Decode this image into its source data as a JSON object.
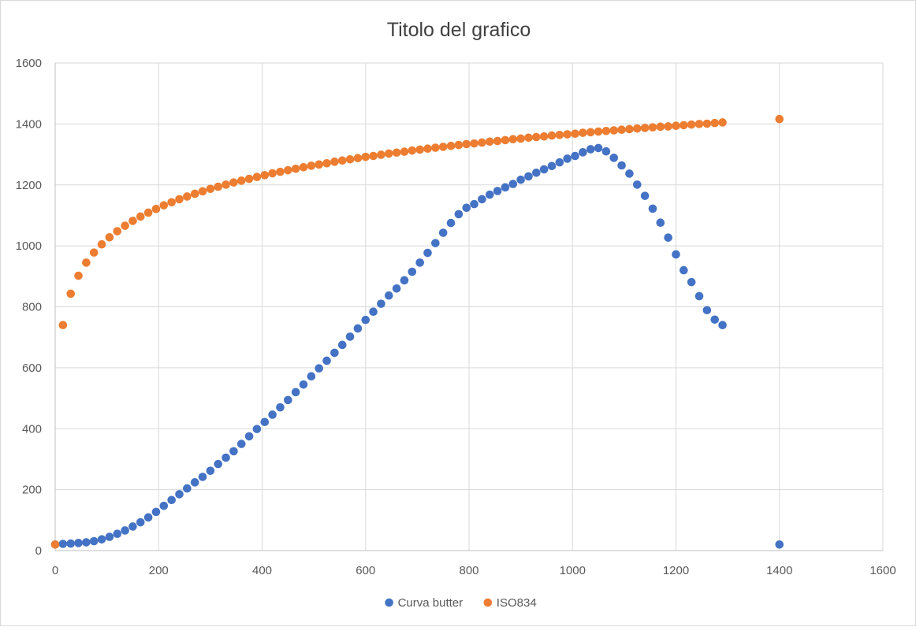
{
  "chart_data": {
    "type": "scatter",
    "title": "Titolo del grafico",
    "xlabel": "",
    "ylabel": "",
    "xlim": [
      0,
      1600
    ],
    "ylim": [
      0,
      1600
    ],
    "x_ticks": [
      "0",
      "200",
      "400",
      "600",
      "800",
      "1000",
      "1200",
      "1400",
      "1600"
    ],
    "y_ticks": [
      "0",
      "200",
      "400",
      "600",
      "800",
      "1000",
      "1200",
      "1400",
      "1600"
    ],
    "grid": true,
    "legend_position": "bottom",
    "series": [
      {
        "name": "Curva butter",
        "color": "#4472c4",
        "points": [
          [
            0,
            20
          ],
          [
            15,
            22
          ],
          [
            30,
            23
          ],
          [
            45,
            25
          ],
          [
            60,
            27
          ],
          [
            75,
            31
          ],
          [
            90,
            37
          ],
          [
            105,
            45
          ],
          [
            120,
            55
          ],
          [
            135,
            66
          ],
          [
            150,
            79
          ],
          [
            165,
            93
          ],
          [
            180,
            109
          ],
          [
            195,
            127
          ],
          [
            210,
            147
          ],
          [
            225,
            166
          ],
          [
            240,
            185
          ],
          [
            255,
            204
          ],
          [
            270,
            224
          ],
          [
            285,
            242
          ],
          [
            300,
            262
          ],
          [
            315,
            284
          ],
          [
            330,
            305
          ],
          [
            345,
            326
          ],
          [
            360,
            350
          ],
          [
            375,
            375
          ],
          [
            390,
            399
          ],
          [
            405,
            422
          ],
          [
            420,
            446
          ],
          [
            435,
            470
          ],
          [
            450,
            494
          ],
          [
            465,
            520
          ],
          [
            480,
            545
          ],
          [
            495,
            572
          ],
          [
            510,
            598
          ],
          [
            525,
            623
          ],
          [
            540,
            649
          ],
          [
            555,
            675
          ],
          [
            570,
            702
          ],
          [
            585,
            729
          ],
          [
            600,
            757
          ],
          [
            615,
            784
          ],
          [
            630,
            810
          ],
          [
            645,
            837
          ],
          [
            660,
            860
          ],
          [
            675,
            887
          ],
          [
            690,
            915
          ],
          [
            705,
            945
          ],
          [
            720,
            977
          ],
          [
            735,
            1009
          ],
          [
            750,
            1043
          ],
          [
            765,
            1075
          ],
          [
            780,
            1104
          ],
          [
            795,
            1125
          ],
          [
            810,
            1137
          ],
          [
            825,
            1153
          ],
          [
            840,
            1168
          ],
          [
            855,
            1180
          ],
          [
            870,
            1192
          ],
          [
            885,
            1203
          ],
          [
            900,
            1217
          ],
          [
            915,
            1228
          ],
          [
            930,
            1240
          ],
          [
            945,
            1251
          ],
          [
            960,
            1262
          ],
          [
            975,
            1274
          ],
          [
            990,
            1286
          ],
          [
            1005,
            1295
          ],
          [
            1020,
            1307
          ],
          [
            1035,
            1317
          ],
          [
            1050,
            1321
          ],
          [
            1065,
            1310
          ],
          [
            1080,
            1289
          ],
          [
            1095,
            1264
          ],
          [
            1110,
            1237
          ],
          [
            1125,
            1201
          ],
          [
            1140,
            1164
          ],
          [
            1155,
            1122
          ],
          [
            1170,
            1076
          ],
          [
            1185,
            1027
          ],
          [
            1200,
            972
          ],
          [
            1215,
            920
          ],
          [
            1230,
            881
          ],
          [
            1245,
            835
          ],
          [
            1260,
            789
          ],
          [
            1275,
            758
          ],
          [
            1290,
            740
          ],
          [
            1400,
            20
          ]
        ]
      },
      {
        "name": "ISO834",
        "color": "#ed7d31",
        "points": [
          [
            0,
            20
          ],
          [
            15,
            740
          ],
          [
            30,
            843
          ],
          [
            45,
            902
          ],
          [
            60,
            945
          ],
          [
            75,
            978
          ],
          [
            90,
            1005
          ],
          [
            105,
            1028
          ],
          [
            120,
            1048
          ],
          [
            135,
            1066
          ],
          [
            150,
            1082
          ],
          [
            165,
            1096
          ],
          [
            180,
            1109
          ],
          [
            195,
            1121
          ],
          [
            210,
            1133
          ],
          [
            225,
            1143
          ],
          [
            240,
            1153
          ],
          [
            255,
            1162
          ],
          [
            270,
            1171
          ],
          [
            285,
            1179
          ],
          [
            300,
            1187
          ],
          [
            315,
            1194
          ],
          [
            330,
            1201
          ],
          [
            345,
            1208
          ],
          [
            360,
            1214
          ],
          [
            375,
            1220
          ],
          [
            390,
            1226
          ],
          [
            405,
            1232
          ],
          [
            420,
            1238
          ],
          [
            435,
            1243
          ],
          [
            450,
            1248
          ],
          [
            465,
            1253
          ],
          [
            480,
            1258
          ],
          [
            495,
            1263
          ],
          [
            510,
            1267
          ],
          [
            525,
            1271
          ],
          [
            540,
            1276
          ],
          [
            555,
            1280
          ],
          [
            570,
            1284
          ],
          [
            585,
            1288
          ],
          [
            600,
            1292
          ],
          [
            615,
            1295
          ],
          [
            630,
            1299
          ],
          [
            645,
            1303
          ],
          [
            660,
            1306
          ],
          [
            675,
            1309
          ],
          [
            690,
            1313
          ],
          [
            705,
            1316
          ],
          [
            720,
            1319
          ],
          [
            735,
            1322
          ],
          [
            750,
            1325
          ],
          [
            765,
            1328
          ],
          [
            780,
            1331
          ],
          [
            795,
            1334
          ],
          [
            810,
            1336
          ],
          [
            825,
            1339
          ],
          [
            840,
            1342
          ],
          [
            855,
            1344
          ],
          [
            870,
            1347
          ],
          [
            885,
            1350
          ],
          [
            900,
            1352
          ],
          [
            915,
            1355
          ],
          [
            930,
            1357
          ],
          [
            945,
            1359
          ],
          [
            960,
            1362
          ],
          [
            975,
            1364
          ],
          [
            990,
            1366
          ],
          [
            1005,
            1368
          ],
          [
            1020,
            1371
          ],
          [
            1035,
            1373
          ],
          [
            1050,
            1375
          ],
          [
            1065,
            1377
          ],
          [
            1080,
            1379
          ],
          [
            1095,
            1381
          ],
          [
            1110,
            1383
          ],
          [
            1125,
            1385
          ],
          [
            1140,
            1387
          ],
          [
            1155,
            1389
          ],
          [
            1170,
            1391
          ],
          [
            1185,
            1392
          ],
          [
            1200,
            1394
          ],
          [
            1215,
            1396
          ],
          [
            1230,
            1398
          ],
          [
            1245,
            1400
          ],
          [
            1260,
            1401
          ],
          [
            1275,
            1403
          ],
          [
            1290,
            1405
          ],
          [
            1400,
            1416
          ]
        ]
      }
    ]
  }
}
